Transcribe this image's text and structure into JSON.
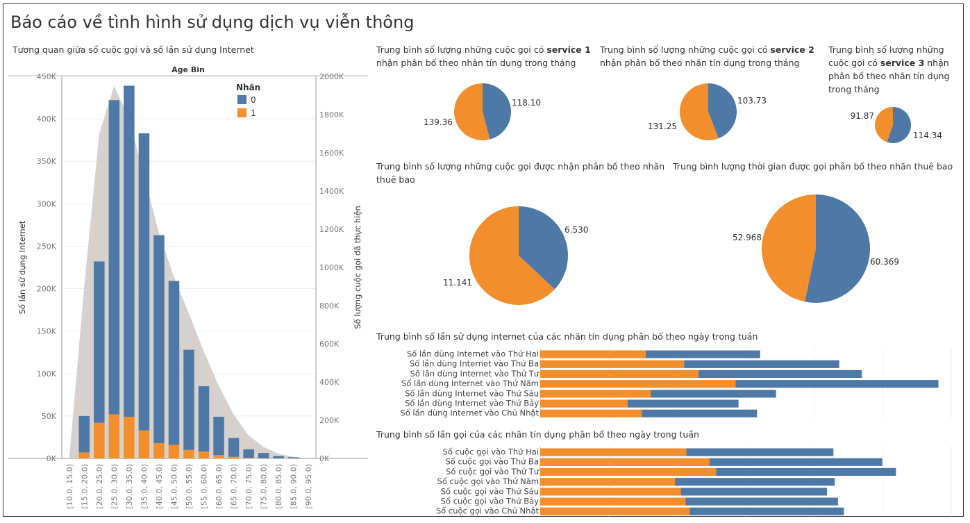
{
  "dashboard": {
    "title": "Báo cáo về tình hình sử dụng dịch vụ viễn thông",
    "colors": {
      "blue": "#4e79a7",
      "orange": "#f28e2b",
      "area": "#d3ccc9",
      "grid": "#eeeeee",
      "axis": "#999999",
      "text": "#333333",
      "tick": "#777777"
    }
  },
  "chart_data": [
    {
      "id": "combo",
      "type": "bar",
      "title": "Tương quan giữa số cuộc gọi và số lần sử dụng Internet",
      "header": "Age Bin",
      "ylabel": "Số lần sử dụng Internet",
      "y2label": "Số lượng cuộc gọi đã thực hiện",
      "ylim": [
        0,
        450000
      ],
      "y2lim": [
        0,
        2000000
      ],
      "yticks": [
        "0K",
        "50K",
        "100K",
        "150K",
        "200K",
        "250K",
        "300K",
        "350K",
        "400K",
        "450K"
      ],
      "y2ticks": [
        "0K",
        "200K",
        "400K",
        "600K",
        "800K",
        "1000K",
        "1200K",
        "1400K",
        "1600K",
        "1800K",
        "2000K"
      ],
      "legend_title": "Nhãn",
      "legend": [
        "0",
        "1"
      ],
      "categories": [
        "[10.0, 15.0)",
        "[15.0, 20.0)",
        "[20.0, 25.0)",
        "[25.0, 30.0)",
        "[30.0, 35.0)",
        "[35.0, 40.0)",
        "[40.0, 45.0)",
        "[45.0, 50.0)",
        "[50.0, 55.0)",
        "[55.0, 60.0)",
        "[60.0, 65.0)",
        "[65.0, 70.0)",
        "[70.0, 75.0)",
        "[75.0, 80.0)",
        "[80.0, 85.0)",
        "[85.0, 90.0)",
        "[90.0, 95.0)"
      ],
      "series": [
        {
          "name": "0",
          "values": [
            0,
            43000,
            190000,
            370000,
            390000,
            350000,
            245000,
            193000,
            118000,
            77000,
            45000,
            22000,
            10000,
            6000,
            2500,
            1200,
            0
          ]
        },
        {
          "name": "1",
          "values": [
            0,
            7000,
            42000,
            52000,
            49000,
            33000,
            18000,
            16000,
            10000,
            8000,
            4000,
            2000,
            700,
            400,
            200,
            100,
            0
          ]
        }
      ],
      "area_values": [
        0,
        900000,
        1700000,
        1950000,
        1780000,
        1480000,
        1180000,
        950000,
        760000,
        560000,
        380000,
        230000,
        120000,
        60000,
        25000,
        8000,
        0
      ]
    },
    {
      "id": "pie1",
      "type": "pie",
      "title": [
        "Trung bình số lượng những cuộc gọi có ",
        "service 1",
        "nhận phân bố theo nhãn tín dụng trong tháng"
      ],
      "labels": [
        "118.10",
        "139.36"
      ],
      "values": [
        118.1,
        139.36
      ]
    },
    {
      "id": "pie2",
      "type": "pie",
      "title": [
        "Trung bình số lượng những cuộc gọi có ",
        "service 2",
        "nhận phân bố theo nhãn tín dụng trong tháng"
      ],
      "labels": [
        "103.73",
        "131.25"
      ],
      "values": [
        103.73,
        131.25
      ]
    },
    {
      "id": "pie3",
      "type": "pie",
      "title": [
        "Trung bình số lượng những",
        "cuộc gọi có ",
        "service 3",
        " nhận",
        "phân bố theo nhãn tín dụng",
        "trong tháng"
      ],
      "labels": [
        "114.34",
        "91.87"
      ],
      "values": [
        114.34,
        91.87
      ]
    },
    {
      "id": "pie4",
      "type": "pie",
      "title": [
        "Trung bình số lượng những cuộc gọi được nhận phân bố theo nhãn",
        "thuê bao"
      ],
      "labels": [
        "6.530",
        "11.141"
      ],
      "values": [
        6.53,
        11.141
      ]
    },
    {
      "id": "pie5",
      "type": "pie",
      "title": [
        "Trung bình lượng thời gian được gọi phân bố theo nhãn thuê bao"
      ],
      "labels": [
        "60.369",
        "52.968"
      ],
      "values": [
        60.369,
        52.968
      ]
    },
    {
      "id": "hbar1",
      "type": "bar",
      "title": "Trung bình số lần sử dụng internet của các nhãn tín dụng phân bố theo ngày trong tuần",
      "categories": [
        "Số lần dùng Internet vào Thứ Hai",
        "Số lần dùng Internet vào Thứ Ba",
        "Số lần dùng Internet vào Thứ Tư",
        "Số lần dùng Internet vào Thứ Năm",
        "Số lần dùng Internet vào Thứ Sáu",
        "Số lần dùng Internet vào Thứ Bảy",
        "Số lần dùng Internet vào Chủ Nhật"
      ],
      "series": [
        {
          "name": "1",
          "values": [
            2.05,
            2.8,
            3.08,
            3.8,
            2.15,
            1.7,
            1.98
          ]
        },
        {
          "name": "0",
          "values": [
            2.23,
            3.02,
            3.18,
            3.95,
            2.44,
            2.16,
            2.24
          ]
        }
      ],
      "xlim": [
        0,
        8
      ]
    },
    {
      "id": "hbar2",
      "type": "bar",
      "title": "Trung bình số lần gọi của các nhãn tín dụng phân bố theo ngày trong tuần",
      "categories": [
        "Số cuộc gọi vào Thứ Hai",
        "Số cuộc gọi vào Thứ Ba",
        "Số cuộc gọi vào Thứ Tư",
        "Số cuộc gọi vào Thứ Năm",
        "Số cuộc gọi vào Thứ Sáu",
        "Số cuộc gọi vào Thứ Bảy",
        "Số cuộc gọi vào Chủ Nhật"
      ],
      "series": [
        {
          "name": "1",
          "values": [
            3.2,
            3.71,
            3.85,
            2.95,
            3.08,
            3.18,
            3.27
          ]
        },
        {
          "name": "0",
          "values": [
            3.22,
            3.78,
            3.94,
            3.5,
            3.2,
            3.34,
            3.38
          ]
        }
      ],
      "xlim": [
        0,
        9
      ]
    }
  ]
}
